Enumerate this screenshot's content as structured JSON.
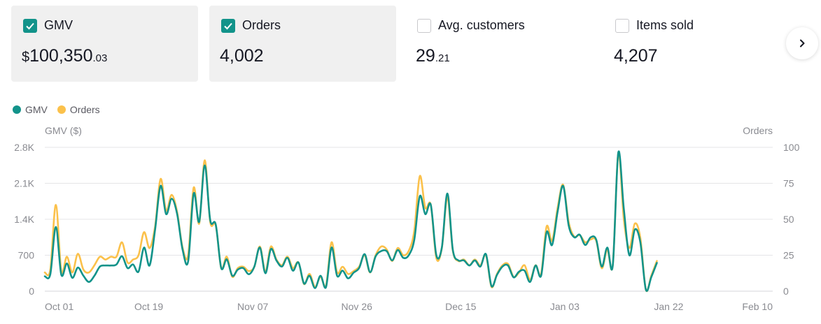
{
  "cards": [
    {
      "label": "GMV",
      "checked": true,
      "currency": "$",
      "value_main": "100,350",
      "value_decimal": ".03"
    },
    {
      "label": "Orders",
      "checked": true,
      "currency": "",
      "value_main": "4,002",
      "value_decimal": ""
    },
    {
      "label": "Avg. customers",
      "checked": false,
      "currency": "",
      "value_main": "29",
      "value_decimal": ".21"
    },
    {
      "label": "Items sold",
      "checked": false,
      "currency": "",
      "value_main": "4,207",
      "value_decimal": ""
    }
  ],
  "icons": {
    "checkbox": "check-icon",
    "next": "chevron-right-icon"
  },
  "colors": {
    "gmv": "#12938a",
    "orders": "#fbc14b",
    "grid": "#e5e5e7",
    "card_active_bg": "#f0f0f0"
  },
  "chart_data": {
    "type": "line",
    "legend": [
      "GMV",
      "Orders"
    ],
    "legend_position": "top-left",
    "y_left_label": "GMV ($)",
    "y_right_label": "Orders",
    "y_left_ticks": [
      "0",
      "700",
      "1.4K",
      "2.1K",
      "2.8K"
    ],
    "y_right_ticks": [
      "0",
      "25",
      "50",
      "75",
      "100"
    ],
    "y_left_range": [
      0,
      2800
    ],
    "y_right_range": [
      0,
      100
    ],
    "x_range": [
      "2023-10-01",
      "2024-02-10"
    ],
    "x_ticks": [
      "Oct 01",
      "Oct 19",
      "Nov 07",
      "Nov 26",
      "Dec 15",
      "Jan 03",
      "Jan 22",
      "Feb 10"
    ],
    "grid": true,
    "series": [
      {
        "name": "GMV",
        "axis": "left",
        "points": [
          [
            "2023-10-01",
            290
          ],
          [
            "2023-10-02",
            330
          ],
          [
            "2023-10-03",
            1250
          ],
          [
            "2023-10-04",
            320
          ],
          [
            "2023-10-05",
            540
          ],
          [
            "2023-10-06",
            260
          ],
          [
            "2023-10-07",
            460
          ],
          [
            "2023-10-08",
            300
          ],
          [
            "2023-10-09",
            180
          ],
          [
            "2023-10-10",
            300
          ],
          [
            "2023-10-11",
            480
          ],
          [
            "2023-10-12",
            500
          ],
          [
            "2023-10-13",
            500
          ],
          [
            "2023-10-14",
            520
          ],
          [
            "2023-10-15",
            680
          ],
          [
            "2023-10-16",
            450
          ],
          [
            "2023-10-17",
            520
          ],
          [
            "2023-10-18",
            380
          ],
          [
            "2023-10-19",
            850
          ],
          [
            "2023-10-20",
            500
          ],
          [
            "2023-10-21",
            1200
          ],
          [
            "2023-10-22",
            2050
          ],
          [
            "2023-10-23",
            1500
          ],
          [
            "2023-10-24",
            1800
          ],
          [
            "2023-10-25",
            1500
          ],
          [
            "2023-10-26",
            800
          ],
          [
            "2023-10-27",
            580
          ],
          [
            "2023-10-28",
            1900
          ],
          [
            "2023-10-29",
            1350
          ],
          [
            "2023-10-30",
            2450
          ],
          [
            "2023-10-31",
            1380
          ],
          [
            "2023-11-01",
            1300
          ],
          [
            "2023-11-02",
            450
          ],
          [
            "2023-11-03",
            620
          ],
          [
            "2023-11-04",
            300
          ],
          [
            "2023-11-05",
            420
          ],
          [
            "2023-11-06",
            450
          ],
          [
            "2023-11-07",
            330
          ],
          [
            "2023-11-08",
            480
          ],
          [
            "2023-11-09",
            850
          ],
          [
            "2023-11-10",
            350
          ],
          [
            "2023-11-11",
            820
          ],
          [
            "2023-11-12",
            600
          ],
          [
            "2023-11-13",
            480
          ],
          [
            "2023-11-14",
            650
          ],
          [
            "2023-11-15",
            400
          ],
          [
            "2023-11-16",
            560
          ],
          [
            "2023-11-17",
            150
          ],
          [
            "2023-11-18",
            300
          ],
          [
            "2023-11-19",
            60
          ],
          [
            "2023-11-20",
            300
          ],
          [
            "2023-11-21",
            80
          ],
          [
            "2023-11-22",
            850
          ],
          [
            "2023-11-23",
            300
          ],
          [
            "2023-11-24",
            400
          ],
          [
            "2023-11-25",
            250
          ],
          [
            "2023-11-26",
            360
          ],
          [
            "2023-11-27",
            450
          ],
          [
            "2023-11-28",
            720
          ],
          [
            "2023-11-29",
            370
          ],
          [
            "2023-11-30",
            680
          ],
          [
            "2023-12-01",
            780
          ],
          [
            "2023-12-02",
            780
          ],
          [
            "2023-12-03",
            600
          ],
          [
            "2023-12-04",
            800
          ],
          [
            "2023-12-05",
            650
          ],
          [
            "2023-12-06",
            700
          ],
          [
            "2023-12-07",
            1000
          ],
          [
            "2023-12-08",
            1850
          ],
          [
            "2023-12-09",
            1500
          ],
          [
            "2023-12-10",
            1680
          ],
          [
            "2023-12-11",
            700
          ],
          [
            "2023-12-12",
            850
          ],
          [
            "2023-12-13",
            1900
          ],
          [
            "2023-12-14",
            800
          ],
          [
            "2023-12-15",
            600
          ],
          [
            "2023-12-16",
            600
          ],
          [
            "2023-12-17",
            500
          ],
          [
            "2023-12-18",
            600
          ],
          [
            "2023-12-19",
            480
          ],
          [
            "2023-12-20",
            720
          ],
          [
            "2023-12-21",
            100
          ],
          [
            "2023-12-22",
            320
          ],
          [
            "2023-12-23",
            480
          ],
          [
            "2023-12-24",
            500
          ],
          [
            "2023-12-25",
            270
          ],
          [
            "2023-12-26",
            380
          ],
          [
            "2023-12-27",
            400
          ],
          [
            "2023-12-28",
            180
          ],
          [
            "2023-12-29",
            500
          ],
          [
            "2023-12-30",
            300
          ],
          [
            "2023-12-31",
            1150
          ],
          [
            "2024-01-01",
            900
          ],
          [
            "2024-01-02",
            1550
          ],
          [
            "2024-01-03",
            2050
          ],
          [
            "2024-01-04",
            1280
          ],
          [
            "2024-01-05",
            1050
          ],
          [
            "2024-01-06",
            1100
          ],
          [
            "2024-01-07",
            900
          ],
          [
            "2024-01-08",
            1050
          ],
          [
            "2024-01-09",
            1000
          ],
          [
            "2024-01-10",
            480
          ],
          [
            "2024-01-11",
            850
          ],
          [
            "2024-01-12",
            500
          ],
          [
            "2024-01-13",
            2700
          ],
          [
            "2024-01-14",
            1600
          ],
          [
            "2024-01-15",
            700
          ],
          [
            "2024-01-16",
            1200
          ],
          [
            "2024-01-17",
            950
          ],
          [
            "2024-01-18",
            30
          ],
          [
            "2024-01-19",
            280
          ],
          [
            "2024-01-20",
            550
          ]
        ]
      },
      {
        "name": "Orders",
        "axis": "right",
        "points": [
          [
            "2023-10-01",
            13
          ],
          [
            "2023-10-02",
            15
          ],
          [
            "2023-10-03",
            60
          ],
          [
            "2023-10-04",
            14
          ],
          [
            "2023-10-05",
            24
          ],
          [
            "2023-10-06",
            13
          ],
          [
            "2023-10-07",
            26
          ],
          [
            "2023-10-08",
            15
          ],
          [
            "2023-10-09",
            13
          ],
          [
            "2023-10-10",
            18
          ],
          [
            "2023-10-11",
            24
          ],
          [
            "2023-10-12",
            22
          ],
          [
            "2023-10-13",
            24
          ],
          [
            "2023-10-14",
            24
          ],
          [
            "2023-10-15",
            34
          ],
          [
            "2023-10-16",
            20
          ],
          [
            "2023-10-17",
            22
          ],
          [
            "2023-10-18",
            25
          ],
          [
            "2023-10-19",
            41
          ],
          [
            "2023-10-20",
            30
          ],
          [
            "2023-10-21",
            45
          ],
          [
            "2023-10-22",
            78
          ],
          [
            "2023-10-23",
            56
          ],
          [
            "2023-10-24",
            67
          ],
          [
            "2023-10-25",
            55
          ],
          [
            "2023-10-26",
            30
          ],
          [
            "2023-10-27",
            25
          ],
          [
            "2023-10-28",
            72
          ],
          [
            "2023-10-29",
            47
          ],
          [
            "2023-10-30",
            91
          ],
          [
            "2023-10-31",
            48
          ],
          [
            "2023-11-01",
            46
          ],
          [
            "2023-11-02",
            16
          ],
          [
            "2023-11-03",
            24
          ],
          [
            "2023-11-04",
            10
          ],
          [
            "2023-11-05",
            16
          ],
          [
            "2023-11-06",
            17
          ],
          [
            "2023-11-07",
            14
          ],
          [
            "2023-11-08",
            17
          ],
          [
            "2023-11-09",
            31
          ],
          [
            "2023-11-10",
            14
          ],
          [
            "2023-11-11",
            31
          ],
          [
            "2023-11-12",
            22
          ],
          [
            "2023-11-13",
            18
          ],
          [
            "2023-11-14",
            24
          ],
          [
            "2023-11-15",
            16
          ],
          [
            "2023-11-16",
            20
          ],
          [
            "2023-11-17",
            5
          ],
          [
            "2023-11-18",
            12
          ],
          [
            "2023-11-19",
            3
          ],
          [
            "2023-11-20",
            10
          ],
          [
            "2023-11-21",
            4
          ],
          [
            "2023-11-22",
            34
          ],
          [
            "2023-11-23",
            13
          ],
          [
            "2023-11-24",
            17
          ],
          [
            "2023-11-25",
            12
          ],
          [
            "2023-11-26",
            14
          ],
          [
            "2023-11-27",
            17
          ],
          [
            "2023-11-28",
            25
          ],
          [
            "2023-11-29",
            13
          ],
          [
            "2023-11-30",
            25
          ],
          [
            "2023-12-01",
            31
          ],
          [
            "2023-12-02",
            29
          ],
          [
            "2023-12-03",
            21
          ],
          [
            "2023-12-04",
            30
          ],
          [
            "2023-12-05",
            25
          ],
          [
            "2023-12-06",
            28
          ],
          [
            "2023-12-07",
            42
          ],
          [
            "2023-12-08",
            80
          ],
          [
            "2023-12-09",
            58
          ],
          [
            "2023-12-10",
            60
          ],
          [
            "2023-12-11",
            23
          ],
          [
            "2023-12-12",
            30
          ],
          [
            "2023-12-13",
            65
          ],
          [
            "2023-12-14",
            28
          ],
          [
            "2023-12-15",
            21
          ],
          [
            "2023-12-16",
            22
          ],
          [
            "2023-12-17",
            18
          ],
          [
            "2023-12-18",
            22
          ],
          [
            "2023-12-19",
            18
          ],
          [
            "2023-12-20",
            25
          ],
          [
            "2023-12-21",
            3
          ],
          [
            "2023-12-22",
            12
          ],
          [
            "2023-12-23",
            18
          ],
          [
            "2023-12-24",
            19
          ],
          [
            "2023-12-25",
            10
          ],
          [
            "2023-12-26",
            13
          ],
          [
            "2023-12-27",
            18
          ],
          [
            "2023-12-28",
            8
          ],
          [
            "2023-12-29",
            18
          ],
          [
            "2023-12-30",
            12
          ],
          [
            "2023-12-31",
            45
          ],
          [
            "2024-01-01",
            35
          ],
          [
            "2024-01-02",
            58
          ],
          [
            "2024-01-03",
            74
          ],
          [
            "2024-01-04",
            48
          ],
          [
            "2024-01-05",
            38
          ],
          [
            "2024-01-06",
            39
          ],
          [
            "2024-01-07",
            34
          ],
          [
            "2024-01-08",
            36
          ],
          [
            "2024-01-09",
            35
          ],
          [
            "2024-01-10",
            16
          ],
          [
            "2024-01-11",
            29
          ],
          [
            "2024-01-12",
            18
          ],
          [
            "2024-01-13",
            96
          ],
          [
            "2024-01-14",
            50
          ],
          [
            "2024-01-15",
            30
          ],
          [
            "2024-01-16",
            47
          ],
          [
            "2024-01-17",
            37
          ],
          [
            "2024-01-18",
            1
          ],
          [
            "2024-01-19",
            11
          ],
          [
            "2024-01-20",
            21
          ]
        ]
      }
    ]
  }
}
